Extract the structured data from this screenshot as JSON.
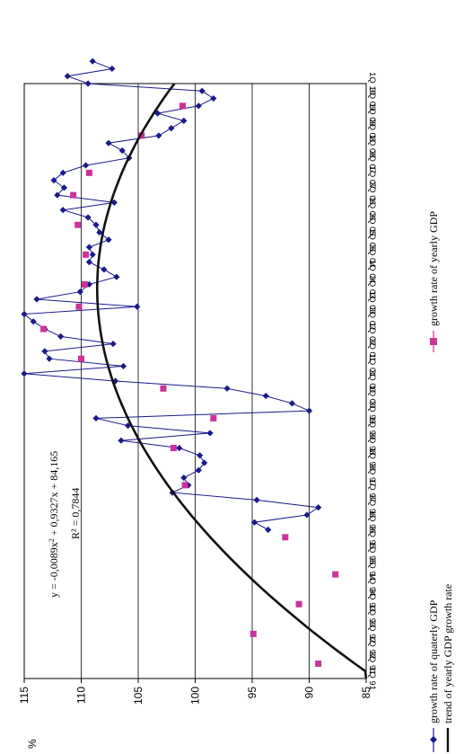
{
  "chart_data": {
    "type": "line",
    "orientation": "rotated 90deg counter-clockwise",
    "y_unit": "%",
    "ylim": [
      85,
      115
    ],
    "y_ticks": [
      "85",
      "90",
      "95",
      "100",
      "105",
      "110",
      "115"
    ],
    "grid": true,
    "categories": [
      "1Q 91",
      "3Q 91",
      "1Q 92",
      "3Q 92",
      "1Q 93",
      "3Q 93",
      "1Q 94",
      "3Q 94",
      "1Q 95",
      "3Q 95",
      "1Q 96",
      "3Q 96",
      "1Q 97",
      "3Q 97",
      "1Q 98",
      "3Q 98",
      "1Q 99",
      "3Q 99",
      "1Q 00",
      "3Q 00",
      "1Q 01",
      "3Q 01",
      "1Q 02",
      "3Q 02",
      "1Q 03",
      "3Q 03",
      "1Q 04",
      "3Q 04",
      "1Q 05",
      "3Q 05",
      "1Q 06",
      "3Q 06",
      "1Q 07",
      "3Q 07",
      "1Q 08",
      "3Q 08",
      "1Q 09",
      "3Q 09",
      "1Q 10"
    ],
    "series": [
      {
        "name": "growth rate of quaterly GDP",
        "style": "line-diamond",
        "color": "#1a1a8c",
        "points": [
          [
            20,
            93.6
          ],
          [
            21,
            94.8
          ],
          [
            22,
            90.2
          ],
          [
            23,
            89.2
          ],
          [
            24,
            94.6
          ],
          [
            25,
            102
          ],
          [
            26,
            100.6
          ],
          [
            27,
            101
          ],
          [
            28,
            99.7
          ],
          [
            29,
            99.2
          ],
          [
            30,
            99.6
          ],
          [
            31,
            101.4
          ],
          [
            32,
            106.5
          ],
          [
            33,
            98.7
          ],
          [
            34,
            105.9
          ],
          [
            35,
            108.7
          ],
          [
            36,
            90
          ],
          [
            37,
            91.5
          ],
          [
            38,
            93.8
          ],
          [
            39,
            97.2
          ],
          [
            40,
            107
          ],
          [
            41,
            115
          ],
          [
            42,
            106.3
          ],
          [
            43,
            112.8
          ],
          [
            44,
            113.2
          ],
          [
            45,
            107.2
          ],
          [
            46,
            111.8
          ],
          [
            47,
            113.2
          ],
          [
            48,
            114.2
          ],
          [
            49,
            115
          ],
          [
            50,
            105.1
          ],
          [
            51,
            113.9
          ],
          [
            52,
            110.1
          ],
          [
            53,
            109.3
          ],
          [
            54,
            106.9
          ],
          [
            55,
            108
          ],
          [
            56,
            109.3
          ],
          [
            57,
            109
          ],
          [
            58,
            109.3
          ],
          [
            59,
            107.6
          ],
          [
            60,
            108.4
          ],
          [
            61,
            108.7
          ],
          [
            62,
            109.4
          ],
          [
            63,
            111.6
          ],
          [
            64,
            107.1
          ],
          [
            65,
            112.1
          ],
          [
            66,
            111.5
          ],
          [
            67,
            112.4
          ],
          [
            68,
            111.6
          ],
          [
            69,
            109.6
          ],
          [
            70,
            105.8
          ],
          [
            71,
            106.4
          ],
          [
            72,
            107.6
          ],
          [
            73,
            103.2
          ],
          [
            74,
            102.1
          ],
          [
            75,
            101
          ],
          [
            76,
            103.3
          ],
          [
            77,
            99.7
          ],
          [
            78,
            98.4
          ],
          [
            79,
            99.4
          ],
          [
            80,
            109.4
          ],
          [
            81,
            111.2
          ],
          [
            82,
            107.3
          ],
          [
            83,
            109
          ]
        ]
      },
      {
        "name": "growth rate of yearly GDP",
        "style": "square-marker",
        "color": "#cc3399",
        "points": [
          [
            2,
            89.2
          ],
          [
            6,
            94.9
          ],
          [
            10,
            90.9
          ],
          [
            14,
            87.7
          ],
          [
            19,
            92.1
          ],
          [
            26,
            100.9
          ],
          [
            31,
            101.9
          ],
          [
            35,
            98.4
          ],
          [
            39,
            102.8
          ],
          [
            43,
            110
          ],
          [
            47,
            113.3
          ],
          [
            50,
            110.2
          ],
          [
            53,
            109.7
          ],
          [
            57,
            109.6
          ],
          [
            61,
            110.3
          ],
          [
            65,
            110.7
          ],
          [
            68,
            109.3
          ],
          [
            73,
            104.7
          ],
          [
            77,
            101.1
          ]
        ]
      },
      {
        "name": "trend of yearly GDP growth rate",
        "style": "thick-line",
        "color": "#111111",
        "equation": "y = -0,0089x2 + 0,9327x + 84,165",
        "coefficients": {
          "a": -0.0089,
          "b": 0.9327,
          "c": 84.165
        },
        "x_range": [
          0,
          80
        ]
      }
    ],
    "annotation": {
      "equation_prefix": "y = -0,0089x",
      "equation_sup": "2",
      "equation_suffix": " + 0,9327x + 84,165",
      "r_squared": "R² = 0,7844"
    },
    "legend": {
      "placement": "bottom",
      "items": [
        "growth rate of quaterly GDP",
        "trend of yearly GDP growth rate",
        "growth rate of yearly GDP"
      ]
    }
  }
}
